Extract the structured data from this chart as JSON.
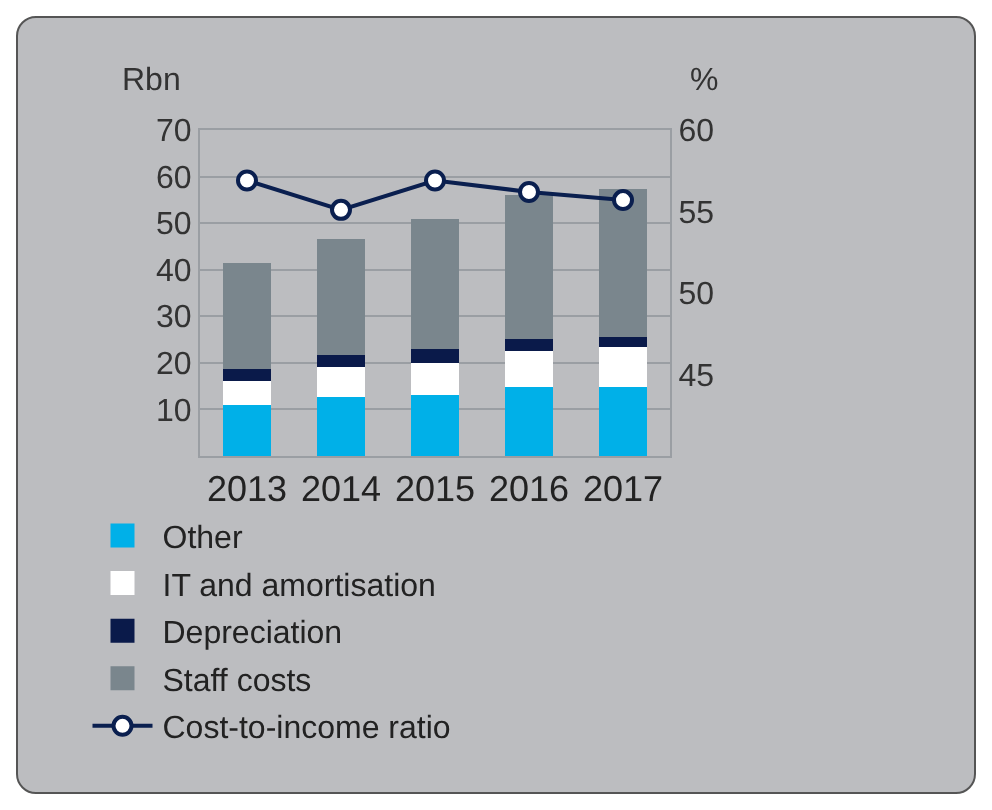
{
  "chart_data": {
    "type": "bar",
    "stacked": true,
    "categories": [
      "2013",
      "2014",
      "2015",
      "2016",
      "2017"
    ],
    "series": [
      {
        "name": "Other",
        "color": "#00b0e8",
        "values": [
          10.9,
          12.6,
          13.1,
          14.8,
          14.8
        ]
      },
      {
        "name": "IT and amortisation",
        "color": "#ffffff",
        "values": [
          5.2,
          6.5,
          6.8,
          7.7,
          8.7
        ]
      },
      {
        "name": "Depreciation",
        "color": "#0a1a4a",
        "values": [
          2.6,
          2.6,
          3.1,
          2.6,
          2.0
        ]
      },
      {
        "name": "Staff costs",
        "color": "#7a868d",
        "values": [
          22.8,
          24.9,
          27.9,
          31.0,
          31.9
        ]
      },
      {
        "name": "Cost-to-income ratio",
        "type": "line",
        "axis": "y2",
        "color": "#0a1f4f",
        "values": [
          56.9,
          55.1,
          56.9,
          56.2,
          55.7
        ]
      }
    ],
    "ylabel": "Rbn",
    "y2label": "%",
    "ylim": [
      0,
      70
    ],
    "yticks": [
      10,
      20,
      30,
      40,
      50,
      60,
      70
    ],
    "y2lim": [
      40,
      60
    ],
    "y2ticks": [
      45,
      50,
      55,
      60
    ],
    "grid": "y",
    "legend": "bottom",
    "marker": "circle",
    "line_style": "solid"
  }
}
